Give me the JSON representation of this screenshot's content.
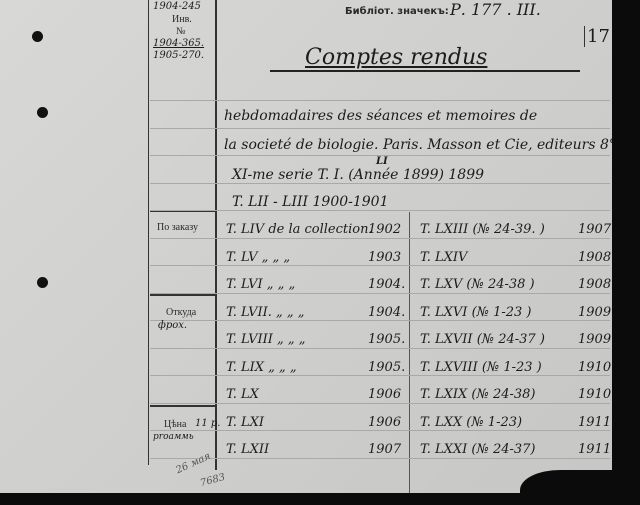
{
  "left_column": {
    "top_note": "1904-245",
    "inv_label": "Инв.",
    "no_label": "№",
    "inv_numbers": [
      "1904-365.",
      "1905-270."
    ],
    "order_label": "По заказу",
    "source_label": "Откуда",
    "source_value": "фрох.",
    "price_label": "Цѣна",
    "price_value": "11 р.",
    "price_note": "рrоаммь",
    "bottom_note_1": "26 мая",
    "bottom_note_2": "7683"
  },
  "header": {
    "call_number_label": "Библiот. значекъ:",
    "call_number_value": "Р. 177 . III.",
    "corner_mark": "171",
    "title": "Comptes rendus"
  },
  "description": [
    "hebdomadaires des séances et memoires de",
    "la societé de biologie. Paris. Masson et Cie, editeurs 8°",
    "XI-me serie T. I. (Année 1899) 1899",
    "T. LII - LIII   1900-1901"
  ],
  "description_superscript": "LI",
  "volumes_left": [
    {
      "vol": "T. LIV de la collection.",
      "year": "1902"
    },
    {
      "vol": "T. LV  „  „   „",
      "year": "1903"
    },
    {
      "vol": "T. LVI  „ „    „",
      "year": "1904."
    },
    {
      "vol": "T. LVII. „ „    „",
      "year": "1904."
    },
    {
      "vol": "T. LVIII  „ „   „",
      "year": "1905."
    },
    {
      "vol": "T. LIX  „ „    „",
      "year": "1905."
    },
    {
      "vol": "T. LX",
      "year": "1906"
    },
    {
      "vol": "T. LXI",
      "year": "1906"
    },
    {
      "vol": "T. LXII",
      "year": "1907"
    }
  ],
  "volumes_right": [
    {
      "vol": "T. LXIII (№ 24-39. )",
      "year": "1907"
    },
    {
      "vol": "T. LXIV",
      "year": "1908"
    },
    {
      "vol": "T. LXV (№ 24-38 )",
      "year": "1908"
    },
    {
      "vol": "T. LXVI (№ 1-23 )",
      "year": "1909"
    },
    {
      "vol": "T. LXVII (№ 24-37 )",
      "year": "1909"
    },
    {
      "vol": "T. LXVIII (№ 1-23 )",
      "year": "1910"
    },
    {
      "vol": "T. LXIX (№ 24-38)",
      "year": "1910."
    },
    {
      "vol": "T. LXX (№ 1-23)",
      "year": "1911"
    },
    {
      "vol": "T. LXXI (№ 24-37)",
      "year": "1911"
    }
  ]
}
